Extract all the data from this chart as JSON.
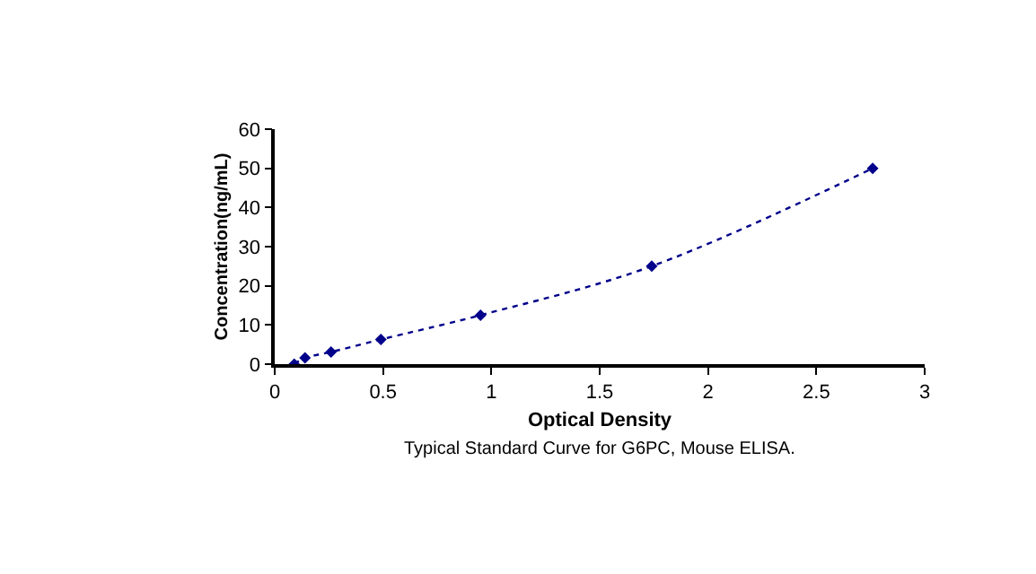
{
  "chart_data": {
    "type": "line",
    "xlabel": "Optical Density",
    "ylabel": "Concentration(ng/mL)",
    "annotations": [
      "Typical Standard Curve for G6PC, Mouse ELISA."
    ],
    "x": [
      0.09,
      0.14,
      0.26,
      0.49,
      0.95,
      1.74,
      2.76
    ],
    "series": [
      {
        "color": "#00008b",
        "values": [
          0,
          1.6,
          3.1,
          6.3,
          12.5,
          25,
          50
        ]
      }
    ],
    "xlim": [
      0,
      3
    ],
    "xticks": [
      0,
      0.5,
      1,
      1.5,
      2,
      2.5,
      3
    ],
    "ylim": [
      0,
      60
    ],
    "yticks": [
      0,
      10,
      20,
      30,
      40,
      50,
      60
    ],
    "legend": false,
    "marker": "diamond",
    "line_style": "dotted"
  }
}
